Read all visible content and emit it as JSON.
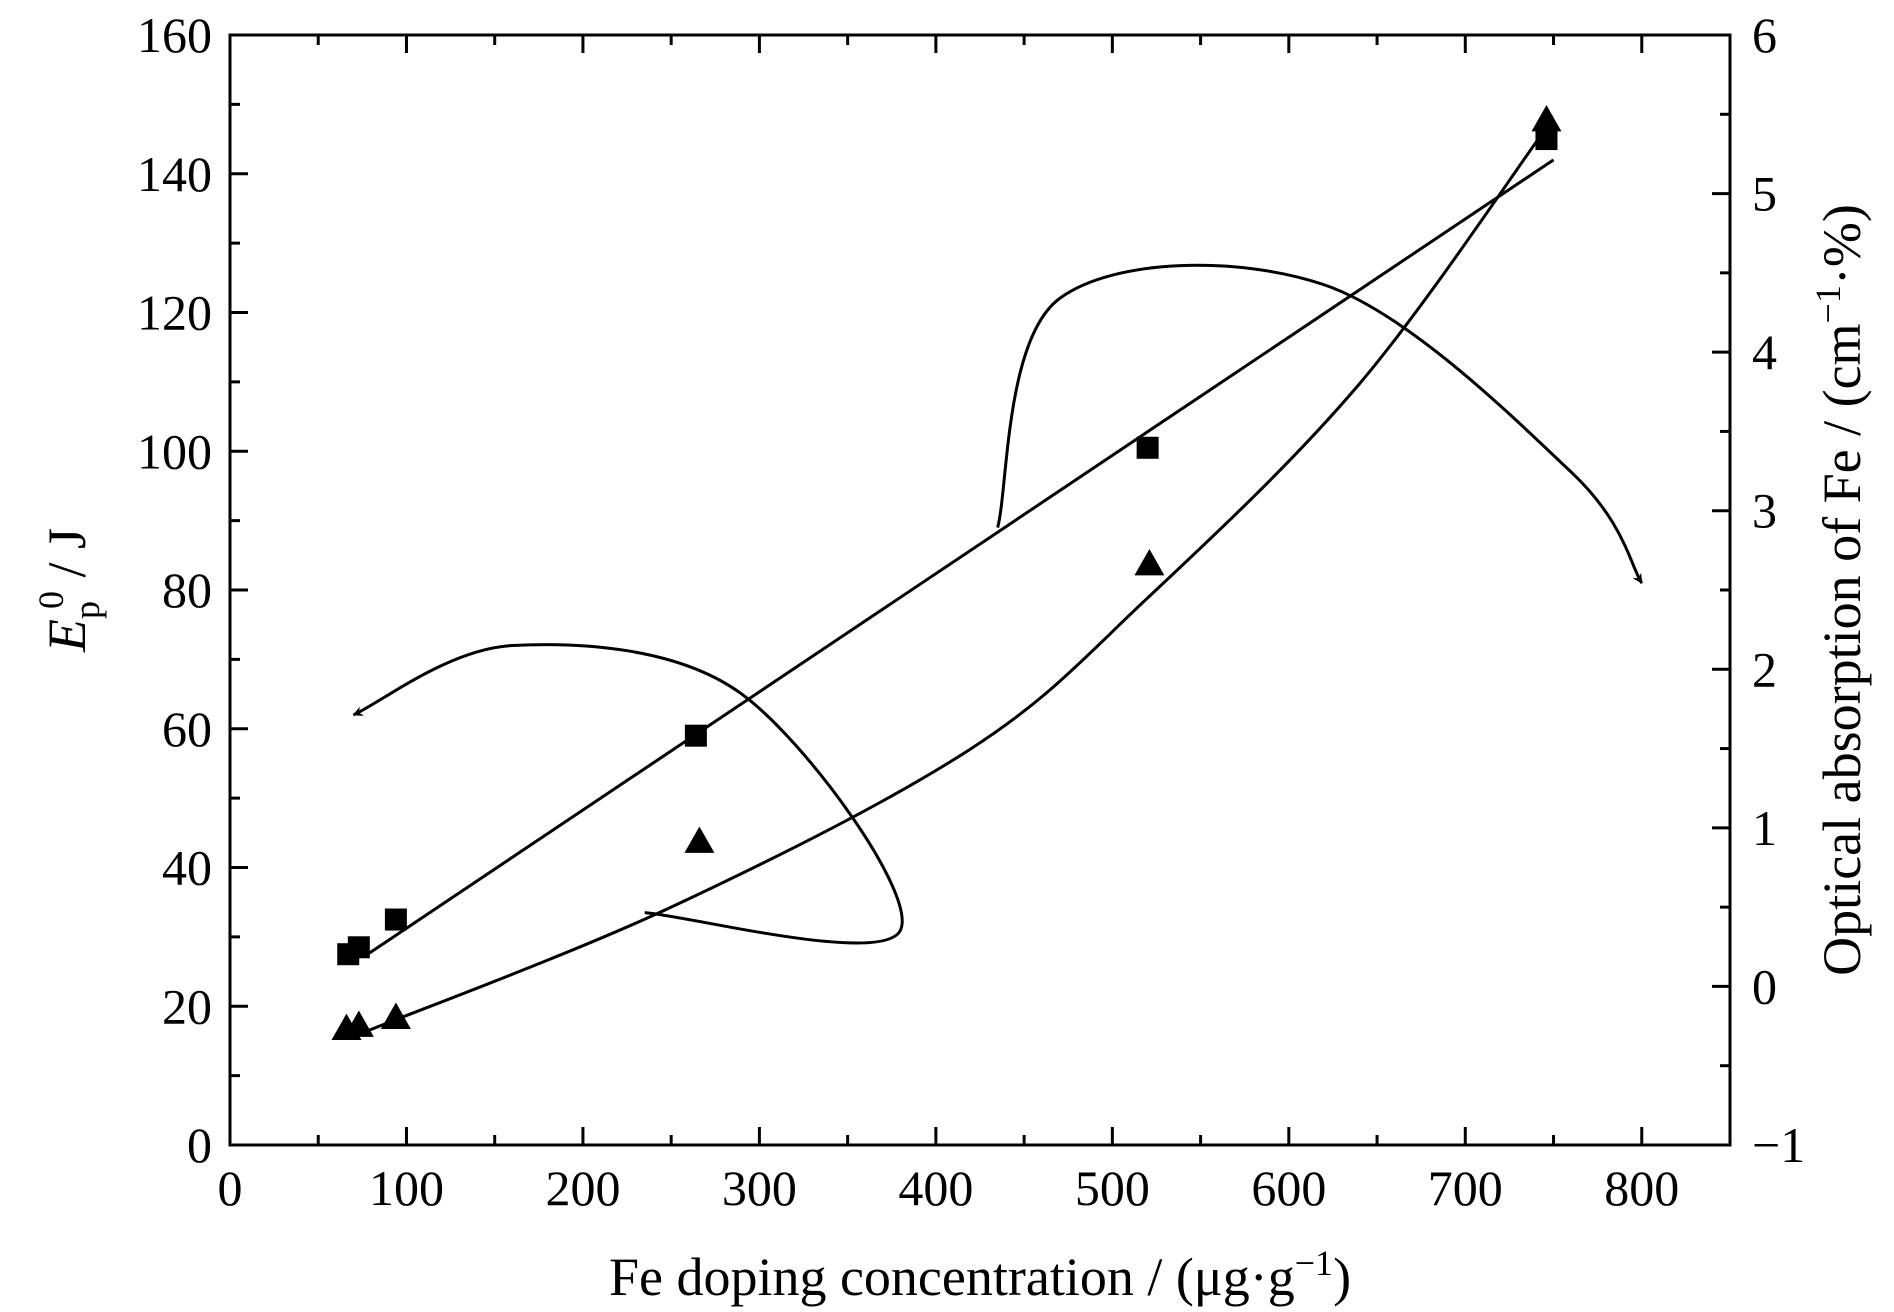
{
  "chart_data": {
    "type": "scatter",
    "x_axis": {
      "label": "Fe doping concentration / (μg·g",
      "label_sup": "−1",
      "label_end": ")",
      "range": [
        0,
        850
      ],
      "ticks": [
        0,
        100,
        200,
        300,
        400,
        500,
        600,
        700,
        800
      ]
    },
    "y_axis_left": {
      "label_italic": "E",
      "label_sub": "p",
      "label_sup": "0",
      "label_rest": " / J",
      "range": [
        0,
        160
      ],
      "ticks": [
        0,
        20,
        40,
        60,
        80,
        100,
        120,
        140,
        160
      ]
    },
    "y_axis_right": {
      "label": "Optical absorption of Fe / (cm",
      "label_sup": "−1",
      "label_end": "·%)",
      "range": [
        -1,
        6
      ],
      "ticks": [
        -1,
        0,
        1,
        2,
        3,
        4,
        5,
        6
      ],
      "tick_labels": [
        "−1",
        "0",
        "1",
        "2",
        "3",
        "4",
        "5",
        "6"
      ]
    },
    "series": [
      {
        "marker": "square",
        "axis": "left",
        "points": [
          [
            67,
            27.5
          ],
          [
            73,
            28.5
          ],
          [
            94,
            32.5
          ],
          [
            264,
            59
          ],
          [
            520,
            100.5
          ],
          [
            746,
            145
          ]
        ],
        "fit_line": [
          [
            78,
            27.5
          ],
          [
            750,
            142
          ]
        ]
      },
      {
        "marker": "triangle",
        "axis": "right",
        "points": [
          [
            66,
            -0.27
          ],
          [
            73,
            -0.25
          ],
          [
            94,
            -0.2
          ],
          [
            266,
            0.91
          ],
          [
            521,
            2.66
          ],
          [
            746,
            5.46
          ]
        ],
        "fit_line": [
          [
            78,
            -0.28
          ],
          [
            250,
            0.5
          ],
          [
            420,
            1.5
          ],
          [
            520,
            2.45
          ],
          [
            640,
            3.8
          ],
          [
            745,
            5.4
          ]
        ]
      }
    ],
    "annotations": [
      {
        "type": "curved-arrow",
        "points_to": "left axis",
        "path": [
          [
            235,
            33.5
          ],
          [
            380,
            31
          ],
          [
            290,
            65
          ],
          [
            160,
            72
          ],
          [
            70,
            62
          ]
        ],
        "arrow_at": [
          70,
          62
        ]
      },
      {
        "type": "curved-arrow",
        "points_to": "right axis",
        "path": [
          [
            435,
            89
          ],
          [
            470,
            122
          ],
          [
            620,
            124
          ],
          [
            760,
            97
          ],
          [
            800,
            81
          ]
        ],
        "arrow_at": [
          800,
          81
        ]
      }
    ],
    "grid": false,
    "legend": "none"
  }
}
